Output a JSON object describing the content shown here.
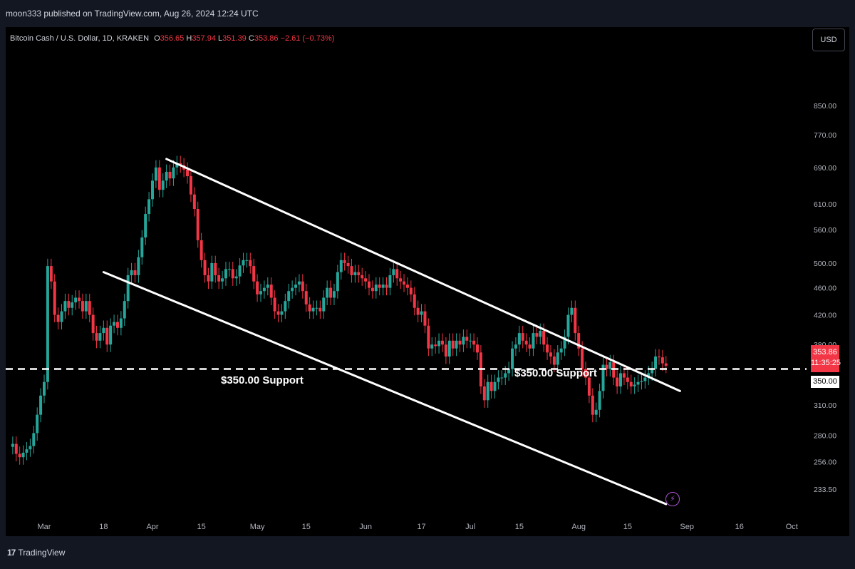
{
  "header": {
    "published": "moon333 published on TradingView.com, Aug 26, 2024 12:24 UTC"
  },
  "legend": {
    "symbol": "Bitcoin Cash / U.S. Dollar, 1D, KRAKEN",
    "o_label": "O",
    "o": "356.65",
    "h_label": "H",
    "h": "357.94",
    "l_label": "L",
    "l": "351.39",
    "c_label": "C",
    "c": "353.86",
    "change": "−2.61 (−0.73%)"
  },
  "currency_button": "USD",
  "price_tag": {
    "price": "353.86",
    "countdown": "11:35:25"
  },
  "support_tag": "350.00",
  "annotations": {
    "support_left": "$350.00 Support",
    "support_right": "$350.00 Support"
  },
  "footer": {
    "brand_mark": "17",
    "brand": "TradingView"
  },
  "colors": {
    "up": "#26a69a",
    "down": "#f23645",
    "line": "#ffffff",
    "bg": "#000000"
  },
  "chart_data": {
    "type": "candlestick",
    "y_axis": {
      "scale": "log",
      "ticks": [
        850.0,
        770.0,
        690.0,
        610.0,
        560.0,
        500.0,
        460.0,
        420.0,
        380.0,
        350.0,
        310.0,
        280.0,
        256.0,
        233.5
      ]
    },
    "x_axis": {
      "ticks": [
        "Mar",
        "18",
        "Apr",
        "15",
        "May",
        "15",
        "Jun",
        "17",
        "Jul",
        "15",
        "Aug",
        "15",
        "Sep",
        "16",
        "Oct"
      ]
    },
    "x_tick_dates": [
      "2024-03-01",
      "2024-03-18",
      "2024-04-01",
      "2024-04-15",
      "2024-05-01",
      "2024-05-15",
      "2024-06-01",
      "2024-06-17",
      "2024-07-01",
      "2024-07-15",
      "2024-08-01",
      "2024-08-15",
      "2024-09-01",
      "2024-09-16",
      "2024-10-01"
    ],
    "candles": [
      {
        "date": "2024-02-21",
        "c": 272
      },
      {
        "date": "2024-02-22",
        "c": 263
      },
      {
        "date": "2024-02-23",
        "c": 260
      },
      {
        "date": "2024-02-24",
        "c": 264
      },
      {
        "date": "2024-02-25",
        "c": 267
      },
      {
        "date": "2024-02-26",
        "c": 270
      },
      {
        "date": "2024-02-27",
        "c": 282
      },
      {
        "date": "2024-02-28",
        "c": 300
      },
      {
        "date": "2024-02-29",
        "c": 320
      },
      {
        "date": "2024-03-01",
        "c": 335
      },
      {
        "date": "2024-03-02",
        "c": 495
      },
      {
        "date": "2024-03-03",
        "c": 470
      },
      {
        "date": "2024-03-04",
        "c": 420
      },
      {
        "date": "2024-03-05",
        "c": 410
      },
      {
        "date": "2024-03-06",
        "c": 425
      },
      {
        "date": "2024-03-07",
        "c": 440
      },
      {
        "date": "2024-03-08",
        "c": 430
      },
      {
        "date": "2024-03-09",
        "c": 438
      },
      {
        "date": "2024-03-10",
        "c": 445
      },
      {
        "date": "2024-03-11",
        "c": 440
      },
      {
        "date": "2024-03-12",
        "c": 425
      },
      {
        "date": "2024-03-13",
        "c": 440
      },
      {
        "date": "2024-03-14",
        "c": 420
      },
      {
        "date": "2024-03-15",
        "c": 395
      },
      {
        "date": "2024-03-16",
        "c": 385
      },
      {
        "date": "2024-03-17",
        "c": 395
      },
      {
        "date": "2024-03-18",
        "c": 402
      },
      {
        "date": "2024-03-19",
        "c": 380
      },
      {
        "date": "2024-03-20",
        "c": 405
      },
      {
        "date": "2024-03-21",
        "c": 410
      },
      {
        "date": "2024-03-22",
        "c": 402
      },
      {
        "date": "2024-03-23",
        "c": 415
      },
      {
        "date": "2024-03-24",
        "c": 440
      },
      {
        "date": "2024-03-25",
        "c": 480
      },
      {
        "date": "2024-03-26",
        "c": 488
      },
      {
        "date": "2024-03-27",
        "c": 480
      },
      {
        "date": "2024-03-28",
        "c": 510
      },
      {
        "date": "2024-03-29",
        "c": 545
      },
      {
        "date": "2024-03-30",
        "c": 590
      },
      {
        "date": "2024-03-31",
        "c": 620
      },
      {
        "date": "2024-04-01",
        "c": 660
      },
      {
        "date": "2024-04-02",
        "c": 690
      },
      {
        "date": "2024-04-03",
        "c": 640
      },
      {
        "date": "2024-04-04",
        "c": 660
      },
      {
        "date": "2024-04-05",
        "c": 680
      },
      {
        "date": "2024-04-06",
        "c": 665
      },
      {
        "date": "2024-04-07",
        "c": 690
      },
      {
        "date": "2024-04-08",
        "c": 700
      },
      {
        "date": "2024-04-09",
        "c": 695
      },
      {
        "date": "2024-04-10",
        "c": 685
      },
      {
        "date": "2024-04-11",
        "c": 670
      },
      {
        "date": "2024-04-12",
        "c": 630
      },
      {
        "date": "2024-04-13",
        "c": 600
      },
      {
        "date": "2024-04-14",
        "c": 540
      },
      {
        "date": "2024-04-15",
        "c": 505
      },
      {
        "date": "2024-04-16",
        "c": 480
      },
      {
        "date": "2024-04-17",
        "c": 470
      },
      {
        "date": "2024-04-18",
        "c": 500
      },
      {
        "date": "2024-04-19",
        "c": 480
      },
      {
        "date": "2024-04-20",
        "c": 470
      },
      {
        "date": "2024-04-21",
        "c": 475
      },
      {
        "date": "2024-04-22",
        "c": 490
      },
      {
        "date": "2024-04-23",
        "c": 490
      },
      {
        "date": "2024-04-24",
        "c": 475
      },
      {
        "date": "2024-04-25",
        "c": 478
      },
      {
        "date": "2024-04-26",
        "c": 496
      },
      {
        "date": "2024-04-27",
        "c": 505
      },
      {
        "date": "2024-04-28",
        "c": 505
      },
      {
        "date": "2024-04-29",
        "c": 495
      },
      {
        "date": "2024-04-30",
        "c": 470
      },
      {
        "date": "2024-05-01",
        "c": 450
      },
      {
        "date": "2024-05-02",
        "c": 455
      },
      {
        "date": "2024-05-03",
        "c": 460
      },
      {
        "date": "2024-05-04",
        "c": 465
      },
      {
        "date": "2024-05-05",
        "c": 445
      },
      {
        "date": "2024-05-06",
        "c": 425
      },
      {
        "date": "2024-05-07",
        "c": 420
      },
      {
        "date": "2024-05-08",
        "c": 425
      },
      {
        "date": "2024-05-09",
        "c": 440
      },
      {
        "date": "2024-05-10",
        "c": 455
      },
      {
        "date": "2024-05-11",
        "c": 460
      },
      {
        "date": "2024-05-12",
        "c": 465
      },
      {
        "date": "2024-05-13",
        "c": 470
      },
      {
        "date": "2024-05-14",
        "c": 455
      },
      {
        "date": "2024-05-15",
        "c": 435
      },
      {
        "date": "2024-05-16",
        "c": 425
      },
      {
        "date": "2024-05-17",
        "c": 430
      },
      {
        "date": "2024-05-18",
        "c": 430
      },
      {
        "date": "2024-05-19",
        "c": 425
      },
      {
        "date": "2024-05-20",
        "c": 445
      },
      {
        "date": "2024-05-21",
        "c": 460
      },
      {
        "date": "2024-05-22",
        "c": 445
      },
      {
        "date": "2024-05-23",
        "c": 455
      },
      {
        "date": "2024-05-24",
        "c": 485
      },
      {
        "date": "2024-05-25",
        "c": 505
      },
      {
        "date": "2024-05-26",
        "c": 500
      },
      {
        "date": "2024-05-27",
        "c": 495
      },
      {
        "date": "2024-05-28",
        "c": 480
      },
      {
        "date": "2024-05-29",
        "c": 485
      },
      {
        "date": "2024-05-30",
        "c": 480
      },
      {
        "date": "2024-05-31",
        "c": 475
      },
      {
        "date": "2024-06-01",
        "c": 470
      },
      {
        "date": "2024-06-02",
        "c": 460
      },
      {
        "date": "2024-06-03",
        "c": 455
      },
      {
        "date": "2024-06-04",
        "c": 465
      },
      {
        "date": "2024-06-05",
        "c": 460
      },
      {
        "date": "2024-06-06",
        "c": 465
      },
      {
        "date": "2024-06-07",
        "c": 460
      },
      {
        "date": "2024-06-08",
        "c": 480
      },
      {
        "date": "2024-06-09",
        "c": 490
      },
      {
        "date": "2024-06-10",
        "c": 475
      },
      {
        "date": "2024-06-11",
        "c": 470
      },
      {
        "date": "2024-06-12",
        "c": 465
      },
      {
        "date": "2024-06-13",
        "c": 460
      },
      {
        "date": "2024-06-14",
        "c": 450
      },
      {
        "date": "2024-06-15",
        "c": 430
      },
      {
        "date": "2024-06-16",
        "c": 420
      },
      {
        "date": "2024-06-17",
        "c": 425
      },
      {
        "date": "2024-06-18",
        "c": 405
      },
      {
        "date": "2024-06-19",
        "c": 375
      },
      {
        "date": "2024-06-20",
        "c": 380
      },
      {
        "date": "2024-06-21",
        "c": 378
      },
      {
        "date": "2024-06-22",
        "c": 385
      },
      {
        "date": "2024-06-23",
        "c": 380
      },
      {
        "date": "2024-06-24",
        "c": 365
      },
      {
        "date": "2024-06-25",
        "c": 385
      },
      {
        "date": "2024-06-26",
        "c": 375
      },
      {
        "date": "2024-06-27",
        "c": 385
      },
      {
        "date": "2024-06-28",
        "c": 380
      },
      {
        "date": "2024-06-29",
        "c": 390
      },
      {
        "date": "2024-06-30",
        "c": 385
      },
      {
        "date": "2024-07-01",
        "c": 385
      },
      {
        "date": "2024-07-02",
        "c": 380
      },
      {
        "date": "2024-07-03",
        "c": 370
      },
      {
        "date": "2024-07-04",
        "c": 330
      },
      {
        "date": "2024-07-05",
        "c": 315
      },
      {
        "date": "2024-07-06",
        "c": 335
      },
      {
        "date": "2024-07-07",
        "c": 325
      },
      {
        "date": "2024-07-08",
        "c": 335
      },
      {
        "date": "2024-07-09",
        "c": 340
      },
      {
        "date": "2024-07-10",
        "c": 340
      },
      {
        "date": "2024-07-11",
        "c": 345
      },
      {
        "date": "2024-07-12",
        "c": 350
      },
      {
        "date": "2024-07-13",
        "c": 375
      },
      {
        "date": "2024-07-14",
        "c": 380
      },
      {
        "date": "2024-07-15",
        "c": 395
      },
      {
        "date": "2024-07-16",
        "c": 385
      },
      {
        "date": "2024-07-17",
        "c": 380
      },
      {
        "date": "2024-07-18",
        "c": 375
      },
      {
        "date": "2024-07-19",
        "c": 395
      },
      {
        "date": "2024-07-20",
        "c": 390
      },
      {
        "date": "2024-07-21",
        "c": 398
      },
      {
        "date": "2024-07-22",
        "c": 380
      },
      {
        "date": "2024-07-23",
        "c": 370
      },
      {
        "date": "2024-07-24",
        "c": 365
      },
      {
        "date": "2024-07-25",
        "c": 355
      },
      {
        "date": "2024-07-26",
        "c": 370
      },
      {
        "date": "2024-07-27",
        "c": 375
      },
      {
        "date": "2024-07-28",
        "c": 390
      },
      {
        "date": "2024-07-29",
        "c": 420
      },
      {
        "date": "2024-07-30",
        "c": 430
      },
      {
        "date": "2024-07-31",
        "c": 395
      },
      {
        "date": "2024-08-01",
        "c": 375
      },
      {
        "date": "2024-08-02",
        "c": 350
      },
      {
        "date": "2024-08-03",
        "c": 340
      },
      {
        "date": "2024-08-04",
        "c": 320
      },
      {
        "date": "2024-08-05",
        "c": 300
      },
      {
        "date": "2024-08-06",
        "c": 305
      },
      {
        "date": "2024-08-07",
        "c": 325
      },
      {
        "date": "2024-08-08",
        "c": 355
      },
      {
        "date": "2024-08-09",
        "c": 350
      },
      {
        "date": "2024-08-10",
        "c": 358
      },
      {
        "date": "2024-08-11",
        "c": 340
      },
      {
        "date": "2024-08-12",
        "c": 330
      },
      {
        "date": "2024-08-13",
        "c": 345
      },
      {
        "date": "2024-08-14",
        "c": 340
      },
      {
        "date": "2024-08-15",
        "c": 335
      },
      {
        "date": "2024-08-16",
        "c": 330
      },
      {
        "date": "2024-08-17",
        "c": 332
      },
      {
        "date": "2024-08-18",
        "c": 335
      },
      {
        "date": "2024-08-19",
        "c": 336
      },
      {
        "date": "2024-08-20",
        "c": 340
      },
      {
        "date": "2024-08-21",
        "c": 345
      },
      {
        "date": "2024-08-22",
        "c": 350
      },
      {
        "date": "2024-08-23",
        "c": 365
      },
      {
        "date": "2024-08-24",
        "c": 364
      },
      {
        "date": "2024-08-25",
        "c": 356.65
      },
      {
        "date": "2024-08-26",
        "c": 353.86
      }
    ],
    "trendlines": [
      {
        "from": {
          "date": "2024-04-05",
          "price": 710
        },
        "to": {
          "date": "2024-08-30",
          "price": 325
        }
      },
      {
        "from": {
          "date": "2024-03-18",
          "price": 485
        },
        "to": {
          "date": "2024-08-26",
          "price": 222
        }
      }
    ],
    "horizontal_line": {
      "price": 350,
      "style": "dashed"
    }
  }
}
